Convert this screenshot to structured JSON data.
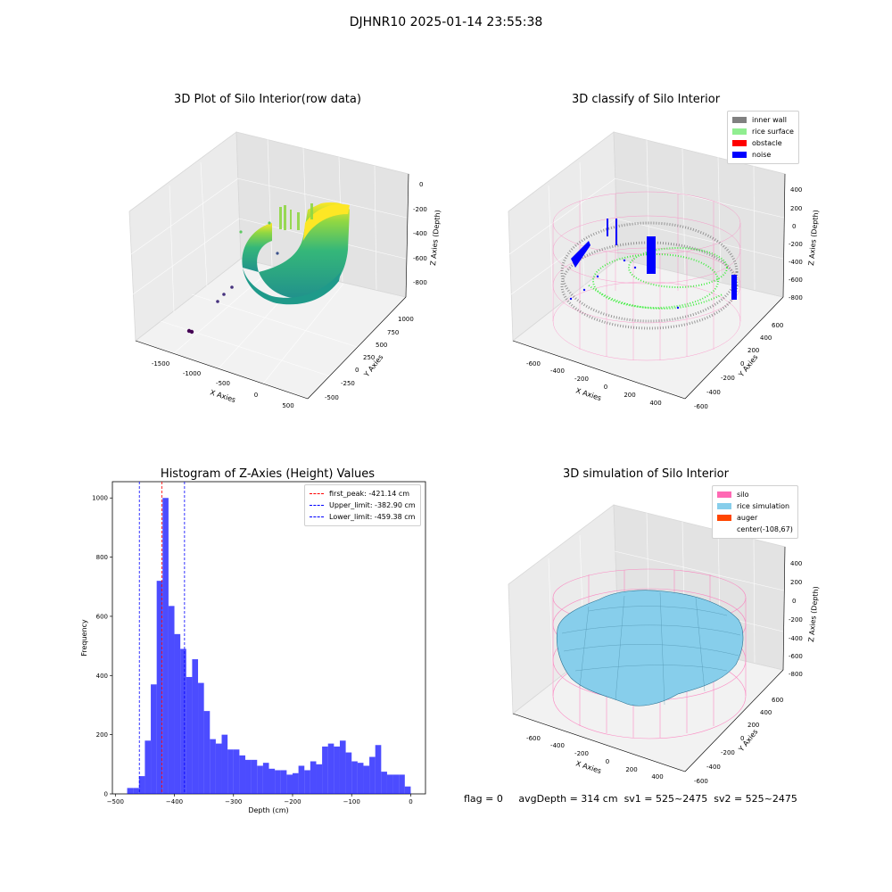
{
  "suptitle": "DJHNR10 2025-01-14 23:55:38",
  "panels": {
    "raw": {
      "title": "3D Plot of Silo Interior(row data)",
      "xlabel": "X Axies",
      "ylabel": "Y Axies",
      "zlabel": "Z Axies (Depth)",
      "xticks": [
        "-1500",
        "-1000",
        "-500",
        "0",
        "500"
      ],
      "yticks": [
        "-500",
        "-250",
        "0",
        "250",
        "500",
        "750",
        "1000"
      ],
      "zticks": [
        "0",
        "-200",
        "-400",
        "-600",
        "-800"
      ]
    },
    "classify": {
      "title": "3D classify of Silo Interior",
      "xlabel": "X Axies",
      "ylabel": "Y Axies",
      "zlabel": "Z Axies (Depth)",
      "xticks": [
        "-600",
        "-400",
        "-200",
        "0",
        "200",
        "400"
      ],
      "yticks": [
        "-600",
        "-400",
        "-200",
        "0",
        "200",
        "400",
        "600"
      ],
      "zticks": [
        "400",
        "200",
        "0",
        "-200",
        "-400",
        "-600",
        "-800"
      ],
      "legend": [
        {
          "label": "inner wall",
          "color": "#808080"
        },
        {
          "label": "rice surface",
          "color": "#90ee90"
        },
        {
          "label": "obstacle",
          "color": "#ff0000"
        },
        {
          "label": "noise",
          "color": "#0000ff"
        }
      ]
    },
    "simulation": {
      "title": "3D simulation of Silo Interior",
      "xlabel": "X Axies",
      "ylabel": "Y Axies",
      "zlabel": "Z Axies (Depth)",
      "xticks": [
        "-600",
        "-400",
        "-200",
        "0",
        "200",
        "400"
      ],
      "yticks": [
        "-600",
        "-400",
        "-200",
        "0",
        "200",
        "400",
        "600"
      ],
      "zticks": [
        "400",
        "200",
        "0",
        "-200",
        "-400",
        "-600",
        "-800"
      ],
      "legend": [
        {
          "label": "silo",
          "color": "#ff69b4"
        },
        {
          "label": "rice simulation",
          "color": "#87ceeb"
        },
        {
          "label": "auger",
          "color": "#ff4500"
        },
        {
          "label": "center(-108,67)",
          "color": ""
        }
      ]
    }
  },
  "chart_data": {
    "type": "bar",
    "title": "Histogram of Z-Axies (Height) Values",
    "xlabel": "Depth (cm)",
    "ylabel": "Frequency",
    "xlim": [
      -505,
      25
    ],
    "ylim": [
      0,
      1055
    ],
    "xticks": [
      -500,
      -400,
      -300,
      -200,
      -100,
      0
    ],
    "yticks": [
      0,
      200,
      400,
      600,
      800,
      1000
    ],
    "bar_color": "#0000ff",
    "bins": [
      {
        "x0": -480,
        "x1": -470,
        "value": 20
      },
      {
        "x0": -470,
        "x1": -460,
        "value": 20
      },
      {
        "x0": -460,
        "x1": -450,
        "value": 60
      },
      {
        "x0": -450,
        "x1": -440,
        "value": 180
      },
      {
        "x0": -440,
        "x1": -430,
        "value": 370
      },
      {
        "x0": -430,
        "x1": -420,
        "value": 720
      },
      {
        "x0": -420,
        "x1": -410,
        "value": 1000
      },
      {
        "x0": -410,
        "x1": -400,
        "value": 635
      },
      {
        "x0": -400,
        "x1": -390,
        "value": 540
      },
      {
        "x0": -390,
        "x1": -380,
        "value": 490
      },
      {
        "x0": -380,
        "x1": -370,
        "value": 395
      },
      {
        "x0": -370,
        "x1": -360,
        "value": 455
      },
      {
        "x0": -360,
        "x1": -350,
        "value": 375
      },
      {
        "x0": -350,
        "x1": -340,
        "value": 280
      },
      {
        "x0": -340,
        "x1": -330,
        "value": 185
      },
      {
        "x0": -330,
        "x1": -320,
        "value": 170
      },
      {
        "x0": -320,
        "x1": -310,
        "value": 200
      },
      {
        "x0": -310,
        "x1": -300,
        "value": 150
      },
      {
        "x0": -300,
        "x1": -290,
        "value": 150
      },
      {
        "x0": -290,
        "x1": -280,
        "value": 130
      },
      {
        "x0": -280,
        "x1": -270,
        "value": 115
      },
      {
        "x0": -270,
        "x1": -260,
        "value": 115
      },
      {
        "x0": -260,
        "x1": -250,
        "value": 95
      },
      {
        "x0": -250,
        "x1": -240,
        "value": 105
      },
      {
        "x0": -240,
        "x1": -230,
        "value": 85
      },
      {
        "x0": -230,
        "x1": -220,
        "value": 80
      },
      {
        "x0": -220,
        "x1": -210,
        "value": 80
      },
      {
        "x0": -210,
        "x1": -200,
        "value": 65
      },
      {
        "x0": -200,
        "x1": -190,
        "value": 70
      },
      {
        "x0": -190,
        "x1": -180,
        "value": 95
      },
      {
        "x0": -180,
        "x1": -170,
        "value": 80
      },
      {
        "x0": -170,
        "x1": -160,
        "value": 110
      },
      {
        "x0": -160,
        "x1": -150,
        "value": 100
      },
      {
        "x0": -150,
        "x1": -140,
        "value": 160
      },
      {
        "x0": -140,
        "x1": -130,
        "value": 170
      },
      {
        "x0": -130,
        "x1": -120,
        "value": 160
      },
      {
        "x0": -120,
        "x1": -110,
        "value": 180
      },
      {
        "x0": -110,
        "x1": -100,
        "value": 140
      },
      {
        "x0": -100,
        "x1": -90,
        "value": 110
      },
      {
        "x0": -90,
        "x1": -80,
        "value": 105
      },
      {
        "x0": -80,
        "x1": -70,
        "value": 95
      },
      {
        "x0": -70,
        "x1": -60,
        "value": 125
      },
      {
        "x0": -60,
        "x1": -50,
        "value": 165
      },
      {
        "x0": -50,
        "x1": -40,
        "value": 75
      },
      {
        "x0": -40,
        "x1": -30,
        "value": 65
      },
      {
        "x0": -30,
        "x1": -20,
        "value": 65
      },
      {
        "x0": -20,
        "x1": -10,
        "value": 65
      },
      {
        "x0": -10,
        "x1": 0,
        "value": 25
      }
    ],
    "vlines": [
      {
        "name": "first_peak",
        "label": "first_peak: -421.14 cm",
        "value": -421.14,
        "color": "#ff0000"
      },
      {
        "name": "upper-limit",
        "label": "Upper_limit: -382.90 cm",
        "value": -382.9,
        "color": "#0000ff"
      },
      {
        "name": "lower-limit",
        "label": "Lower_limit: -459.38 cm",
        "value": -459.38,
        "color": "#0000ff"
      }
    ],
    "legend_position": "top-right"
  },
  "status": {
    "flag": "flag = 0",
    "avg": "avgDepth = 314 cm",
    "sv1": "sv1 = 525~2475",
    "sv2": "sv2 = 525~2475"
  }
}
